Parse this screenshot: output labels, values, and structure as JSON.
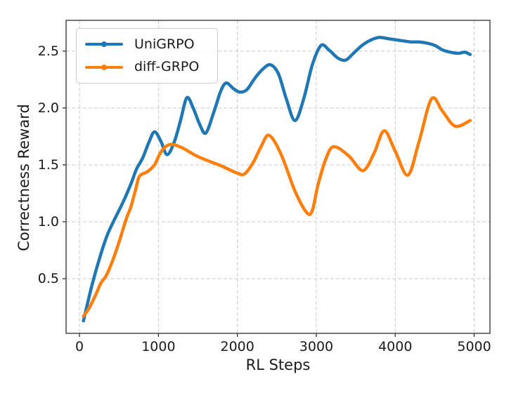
{
  "figure": {
    "background": "#ffffff",
    "spine_color": "#3b3b3b",
    "grid_color": "#cccccc",
    "text_color": "#1a1a1a"
  },
  "legend": {
    "items": [
      {
        "label": "UniGRPO",
        "color": "#1f77b4"
      },
      {
        "label": "diff-GRPO",
        "color": "#ff7f0e"
      }
    ]
  },
  "chart_data": {
    "type": "line",
    "title": "",
    "xlabel": "RL Steps",
    "ylabel": "Correctness Reward",
    "xlim": [
      -170,
      5200
    ],
    "ylim": [
      0.02,
      2.77
    ],
    "x_ticks": [
      0,
      1000,
      2000,
      3000,
      4000,
      5000
    ],
    "y_ticks": [
      0.5,
      1.0,
      1.5,
      2.0,
      2.5
    ],
    "grid": true,
    "grid_style": "dashed",
    "legend_position": "upper left",
    "series": [
      {
        "name": "UniGRPO",
        "color": "#1f77b4",
        "x": [
          50,
          150,
          250,
          350,
          450,
          550,
          650,
          720,
          800,
          880,
          950,
          1030,
          1110,
          1200,
          1280,
          1360,
          1440,
          1520,
          1600,
          1700,
          1790,
          1860,
          1950,
          2030,
          2120,
          2220,
          2320,
          2420,
          2520,
          2620,
          2730,
          2840,
          2950,
          3060,
          3160,
          3270,
          3370,
          3470,
          3580,
          3700,
          3800,
          3900,
          4000,
          4100,
          4200,
          4300,
          4400,
          4500,
          4600,
          4700,
          4800,
          4880,
          4950
        ],
        "y": [
          0.13,
          0.42,
          0.67,
          0.88,
          1.03,
          1.17,
          1.33,
          1.46,
          1.56,
          1.7,
          1.79,
          1.71,
          1.59,
          1.7,
          1.89,
          2.09,
          2.0,
          1.86,
          1.78,
          1.96,
          2.15,
          2.22,
          2.17,
          2.14,
          2.16,
          2.26,
          2.34,
          2.38,
          2.3,
          2.08,
          1.89,
          2.08,
          2.38,
          2.55,
          2.51,
          2.44,
          2.42,
          2.48,
          2.55,
          2.6,
          2.62,
          2.61,
          2.6,
          2.59,
          2.58,
          2.58,
          2.57,
          2.55,
          2.51,
          2.49,
          2.48,
          2.49,
          2.47
        ]
      },
      {
        "name": "diff-GRPO",
        "color": "#ff7f0e",
        "x": [
          50,
          120,
          200,
          270,
          340,
          420,
          500,
          590,
          650,
          710,
          760,
          860,
          950,
          1020,
          1090,
          1170,
          1300,
          1480,
          1650,
          1800,
          1990,
          2090,
          2200,
          2300,
          2400,
          2550,
          2730,
          2880,
          2950,
          3020,
          3120,
          3220,
          3410,
          3590,
          3730,
          3860,
          4000,
          4160,
          4300,
          4460,
          4600,
          4760,
          4950
        ],
        "y": [
          0.17,
          0.24,
          0.35,
          0.46,
          0.53,
          0.66,
          0.82,
          1.02,
          1.13,
          1.28,
          1.4,
          1.44,
          1.5,
          1.6,
          1.66,
          1.68,
          1.65,
          1.58,
          1.53,
          1.49,
          1.43,
          1.42,
          1.52,
          1.66,
          1.76,
          1.6,
          1.27,
          1.08,
          1.1,
          1.32,
          1.55,
          1.66,
          1.58,
          1.45,
          1.6,
          1.8,
          1.62,
          1.41,
          1.7,
          2.08,
          1.97,
          1.84,
          1.89
        ]
      }
    ]
  }
}
